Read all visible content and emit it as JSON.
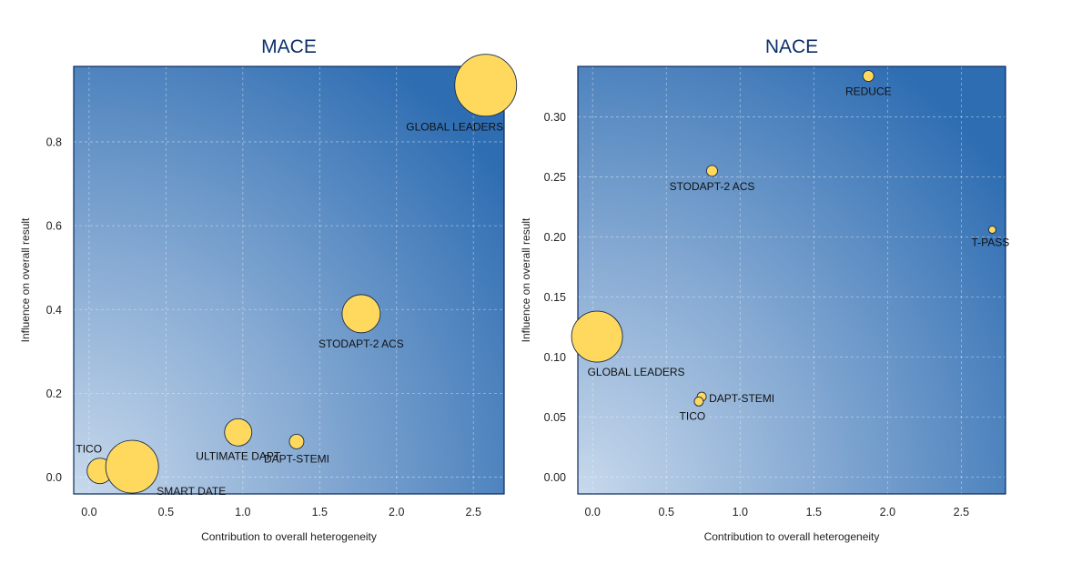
{
  "chart_data": [
    {
      "type": "scatter",
      "title": "MACE",
      "xlabel": "Contribution to overall heterogeneity",
      "ylabel": "Influence on overall result",
      "xlim": [
        -0.1,
        2.7
      ],
      "ylim": [
        -0.04,
        0.98
      ],
      "xticks": [
        0.0,
        0.5,
        1.0,
        1.5,
        2.0,
        2.5
      ],
      "xtick_labels": [
        "0.0",
        "0.5",
        "1.0",
        "1.5",
        "2.0",
        "2.5"
      ],
      "yticks": [
        0.0,
        0.2,
        0.4,
        0.6,
        0.8
      ],
      "ytick_labels": [
        "0.0",
        "0.2",
        "0.4",
        "0.6",
        "0.8"
      ],
      "grid": true,
      "points": [
        {
          "label": "TICO",
          "x": 0.07,
          "y": 0.015,
          "size": 14,
          "label_pos": "above-left"
        },
        {
          "label": "SMART DATE",
          "x": 0.28,
          "y": 0.025,
          "size": 29,
          "label_pos": "below-right"
        },
        {
          "label": "ULTIMATE DAPT",
          "x": 0.97,
          "y": 0.107,
          "size": 15,
          "label_pos": "below"
        },
        {
          "label": "DAPT-STEMI",
          "x": 1.35,
          "y": 0.085,
          "size": 8,
          "label_pos": "below"
        },
        {
          "label": "STODAPT-2 ACS",
          "x": 1.77,
          "y": 0.39,
          "size": 21,
          "label_pos": "below-left"
        },
        {
          "label": "GLOBAL LEADERS",
          "x": 2.58,
          "y": 0.935,
          "size": 34,
          "label_pos": "below-left"
        }
      ]
    },
    {
      "type": "scatter",
      "title": "NACE",
      "xlabel": "Contribution to overall heterogeneity",
      "ylabel": "Influence on overall result",
      "xlim": [
        -0.1,
        2.8
      ],
      "ylim": [
        -0.014,
        0.342
      ],
      "xticks": [
        0.0,
        0.5,
        1.0,
        1.5,
        2.0,
        2.5
      ],
      "xtick_labels": [
        "0.0",
        "0.5",
        "1.0",
        "1.5",
        "2.0",
        "2.5"
      ],
      "yticks": [
        0.0,
        0.05,
        0.1,
        0.15,
        0.2,
        0.25,
        0.3
      ],
      "ytick_labels": [
        "0.00",
        "0.05",
        "0.10",
        "0.15",
        "0.20",
        "0.25",
        "0.30"
      ],
      "grid": true,
      "points": [
        {
          "label": "REDUCE",
          "x": 1.87,
          "y": 0.334,
          "size": 6,
          "label_pos": "below"
        },
        {
          "label": "STODAPT-2 ACS",
          "x": 0.81,
          "y": 0.255,
          "size": 6,
          "label_pos": "below"
        },
        {
          "label": "T-PASS",
          "x": 2.71,
          "y": 0.206,
          "size": 4,
          "label_pos": "below"
        },
        {
          "label": "GLOBAL LEADERS",
          "x": 0.03,
          "y": 0.117,
          "size": 28,
          "label_pos": "below-right"
        },
        {
          "label": "DAPT-STEMI",
          "x": 0.74,
          "y": 0.067,
          "size": 5,
          "label_pos": "right"
        },
        {
          "label": "TICO",
          "x": 0.72,
          "y": 0.063,
          "size": 5,
          "label_pos": "below-left"
        }
      ]
    }
  ]
}
